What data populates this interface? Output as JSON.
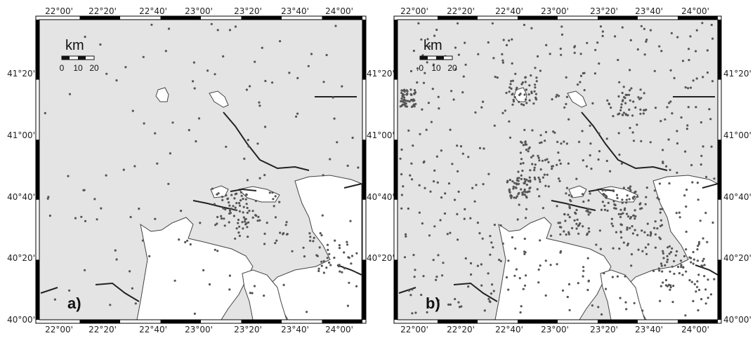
{
  "colors": {
    "sea_land_background": "#e4e4e4",
    "land_white": "#ffffff",
    "coast_stroke": "#444444",
    "fault_line": "#222222",
    "epicenter_dot": "#555555",
    "frame_dark": "#000000"
  },
  "longitude_ticks": [
    "22°00'",
    "22°20'",
    "22°40'",
    "23°00'",
    "23°20'",
    "23°40'",
    "24°00'"
  ],
  "latitude_ticks": [
    "41°20'",
    "41°00'",
    "40°40'",
    "40°20'",
    "40°00'"
  ],
  "panels": [
    {
      "label": "a)",
      "scalebar": {
        "unit": "km",
        "ticks": [
          "0",
          "10",
          "20"
        ]
      }
    },
    {
      "label": "b)",
      "scalebar": {
        "unit": "km",
        "ticks": [
          ".0",
          "10",
          "20"
        ]
      }
    }
  ]
}
